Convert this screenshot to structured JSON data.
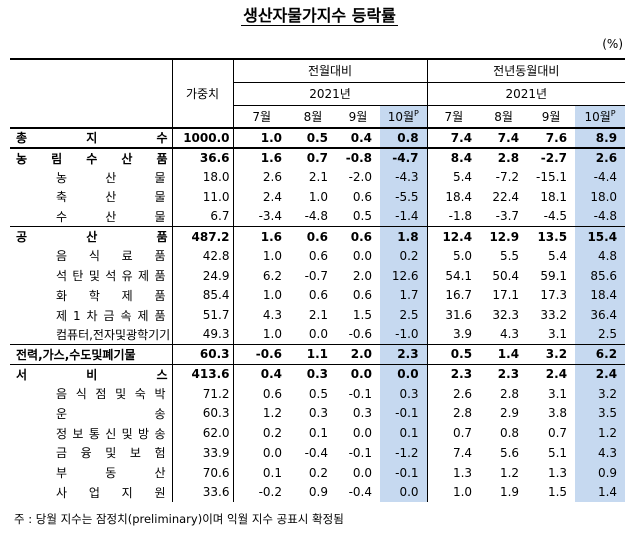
{
  "title": "생산자물가지수 등락률",
  "unit": "(%)",
  "header": {
    "weight": "가중치",
    "mom": "전월대비",
    "yoy": "전년동월대비",
    "year_mom": "2021년",
    "year_yoy": "2021년",
    "months_mom": [
      "7월",
      "8월",
      "9월",
      "10월"
    ],
    "months_yoy": [
      "7월",
      "8월",
      "9월",
      "10월"
    ],
    "prelim_mark": "P"
  },
  "table": {
    "rows": [
      {
        "name": "총 지 수",
        "bold": true,
        "weight": "1000.0",
        "mom": [
          "1.0",
          "0.5",
          "0.4",
          "0.8"
        ],
        "yoy": [
          "7.4",
          "7.4",
          "7.6",
          "8.9"
        ]
      },
      {
        "name": "농 림 수 산 품",
        "bold": true,
        "weight": "36.6",
        "mom": [
          "1.6",
          "0.7",
          "-0.8",
          "-4.7"
        ],
        "yoy": [
          "8.4",
          "2.8",
          "-2.7",
          "2.6"
        ]
      },
      {
        "name": "농 산 물",
        "weight": "18.0",
        "mom": [
          "2.6",
          "2.1",
          "-2.0",
          "-4.3"
        ],
        "yoy": [
          "5.4",
          "-7.2",
          "-15.1",
          "-4.4"
        ]
      },
      {
        "name": "축 산 물",
        "weight": "11.0",
        "mom": [
          "2.4",
          "1.0",
          "0.6",
          "-5.5"
        ],
        "yoy": [
          "18.4",
          "22.4",
          "18.1",
          "18.0"
        ]
      },
      {
        "name": "수 산 물",
        "weight": "6.7",
        "mom": [
          "-3.4",
          "-4.8",
          "0.5",
          "-1.4"
        ],
        "yoy": [
          "-1.8",
          "-3.7",
          "-4.5",
          "-4.8"
        ]
      },
      {
        "name": "공 산 품",
        "bold": true,
        "weight": "487.2",
        "mom": [
          "1.6",
          "0.6",
          "0.6",
          "1.8"
        ],
        "yoy": [
          "12.4",
          "12.9",
          "13.5",
          "15.4"
        ]
      },
      {
        "name": "음 식 료 품",
        "weight": "42.8",
        "mom": [
          "1.0",
          "0.6",
          "0.0",
          "0.2"
        ],
        "yoy": [
          "5.0",
          "5.5",
          "5.4",
          "4.8"
        ]
      },
      {
        "name": "석 탄 및 석 유 제 품",
        "weight": "24.9",
        "mom": [
          "6.2",
          "-0.7",
          "2.0",
          "12.6"
        ],
        "yoy": [
          "54.1",
          "50.4",
          "59.1",
          "85.6"
        ]
      },
      {
        "name": "화 학 제 품",
        "weight": "85.4",
        "mom": [
          "1.0",
          "0.6",
          "0.6",
          "1.7"
        ],
        "yoy": [
          "16.7",
          "17.1",
          "17.3",
          "18.4"
        ]
      },
      {
        "name": "제 1 차 금 속 제 품",
        "weight": "51.7",
        "mom": [
          "4.3",
          "2.1",
          "1.5",
          "2.5"
        ],
        "yoy": [
          "31.6",
          "32.3",
          "33.2",
          "36.4"
        ]
      },
      {
        "name": "컴퓨터,전자및광학기기",
        "weight": "49.3",
        "mom": [
          "1.0",
          "0.0",
          "-0.6",
          "-1.0"
        ],
        "yoy": [
          "3.9",
          "4.3",
          "3.1",
          "2.5"
        ]
      },
      {
        "name": "전력,가스,수도및폐기물",
        "bold": true,
        "weight": "60.3",
        "mom": [
          "-0.6",
          "1.1",
          "2.0",
          "2.3"
        ],
        "yoy": [
          "0.5",
          "1.4",
          "3.2",
          "6.2"
        ]
      },
      {
        "name": "서 비 스",
        "bold": true,
        "weight": "413.6",
        "mom": [
          "0.4",
          "0.3",
          "0.0",
          "0.0"
        ],
        "yoy": [
          "2.3",
          "2.3",
          "2.4",
          "2.4"
        ]
      },
      {
        "name": "음 식 점 및 숙 박",
        "weight": "71.2",
        "mom": [
          "0.6",
          "0.5",
          "-0.1",
          "0.3"
        ],
        "yoy": [
          "2.6",
          "2.8",
          "3.1",
          "3.2"
        ]
      },
      {
        "name": "운 송",
        "weight": "60.3",
        "mom": [
          "1.2",
          "0.3",
          "0.3",
          "-0.1"
        ],
        "yoy": [
          "2.8",
          "2.9",
          "3.8",
          "3.5"
        ]
      },
      {
        "name": "정 보 통 신 및 방 송",
        "weight": "62.0",
        "mom": [
          "0.2",
          "0.1",
          "0.0",
          "0.1"
        ],
        "yoy": [
          "0.7",
          "0.8",
          "0.7",
          "1.2"
        ]
      },
      {
        "name": "금 융 및 보 험",
        "weight": "33.9",
        "mom": [
          "0.0",
          "-0.4",
          "-0.1",
          "-1.2"
        ],
        "yoy": [
          "7.4",
          "5.6",
          "5.1",
          "4.3"
        ]
      },
      {
        "name": "부 동 산",
        "weight": "70.6",
        "mom": [
          "0.1",
          "0.2",
          "0.0",
          "-0.1"
        ],
        "yoy": [
          "1.3",
          "1.2",
          "1.3",
          "0.9"
        ]
      },
      {
        "name": "사 업 지 원",
        "weight": "33.6",
        "mom": [
          "-0.2",
          "0.9",
          "-0.4",
          "0.0"
        ],
        "yoy": [
          "1.0",
          "1.9",
          "1.5",
          "1.4"
        ]
      }
    ]
  },
  "note": "주 : 당월 지수는 잠정치(preliminary)이며 익월 지수 공표시 확정됨"
}
